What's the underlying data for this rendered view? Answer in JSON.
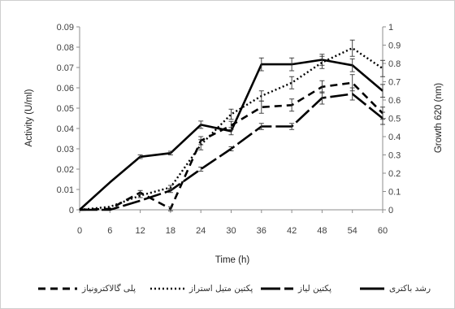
{
  "chart_data": {
    "type": "line",
    "xlabel": "Time (h)",
    "ylabel_left": "Activity (U/ml)",
    "ylabel_right": "Growth 620 (nm)",
    "x": [
      0,
      6,
      12,
      18,
      24,
      30,
      36,
      42,
      48,
      54,
      60
    ],
    "xlim": [
      0,
      60
    ],
    "ylim_left": [
      0,
      0.09
    ],
    "ylim_right": [
      0,
      1
    ],
    "yticks_left": [
      "0",
      "0.01",
      "0.02",
      "0.03",
      "0.04",
      "0.05",
      "0.06",
      "0.07",
      "0.08",
      "0.09"
    ],
    "yticks_right": [
      "0",
      "0.1",
      "0.2",
      "0.3",
      "0.4",
      "0.5",
      "0.6",
      "0.7",
      "0.8",
      "0.9",
      "1"
    ],
    "grid": false,
    "legend_position": "bottom",
    "series": [
      {
        "name": "رشد باکتری",
        "axis": "right",
        "style": "solid",
        "values": [
          0,
          0.15,
          0.29,
          0.31,
          0.465,
          0.43,
          0.795,
          0.795,
          0.82,
          0.79,
          0.65
        ],
        "errors": [
          0,
          0,
          0.01,
          0.01,
          0.02,
          0.02,
          0.035,
          0.035,
          0.03,
          0.035,
          0.035
        ]
      },
      {
        "name": "پکتین لیاز",
        "axis": "left",
        "style": "longdash",
        "values": [
          0,
          0,
          0.0045,
          0.0095,
          0.02,
          0.03,
          0.041,
          0.041,
          0.055,
          0.057,
          0.045
        ],
        "errors": [
          0,
          0,
          0,
          0.001,
          0.001,
          0.001,
          0.0015,
          0.0015,
          0.003,
          0.003,
          0.003
        ]
      },
      {
        "name": "پکتین متیل استراز",
        "axis": "left",
        "style": "dotted",
        "values": [
          0,
          0.0015,
          0.007,
          0.011,
          0.032,
          0.047,
          0.056,
          0.0625,
          0.0725,
          0.0795,
          0.0695
        ],
        "errors": [
          0,
          0,
          0.001,
          0.001,
          0.0025,
          0.0025,
          0.0025,
          0.003,
          0.003,
          0.004,
          0.004
        ]
      },
      {
        "name": "پلی گالاکترونیاز",
        "axis": "left",
        "style": "dashed",
        "values": [
          0,
          0.0005,
          0.0085,
          0.0005,
          0.034,
          0.0415,
          0.0505,
          0.0515,
          0.0605,
          0.0625,
          0.0475
        ],
        "errors": [
          0,
          0,
          0.001,
          0.001,
          0.002,
          0.002,
          0.003,
          0.003,
          0.003,
          0.004,
          0.003
        ]
      }
    ]
  }
}
